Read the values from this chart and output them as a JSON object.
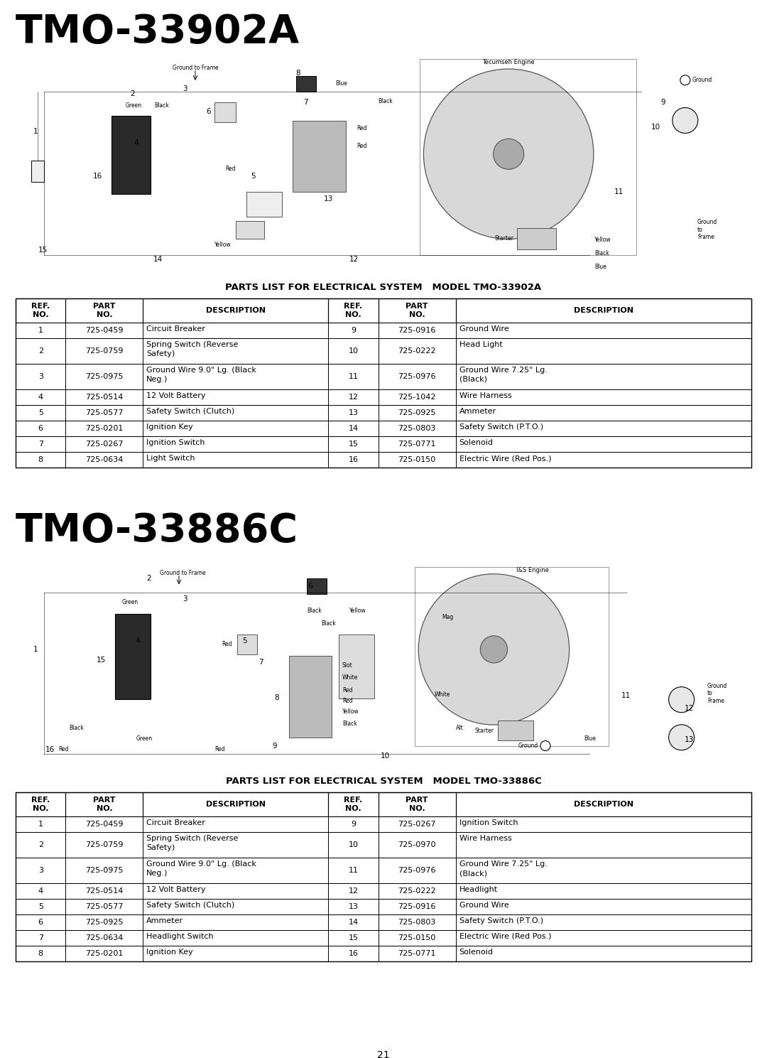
{
  "title1": "TMO-33902A",
  "title2": "TMO-33886C",
  "page_bg": "#ffffff",
  "table1_title": "PARTS LIST FOR ELECTRICAL SYSTEM   MODEL TMO-33902A",
  "table2_title": "PARTS LIST FOR ELECTRICAL SYSTEM   MODEL TMO-33886C",
  "table1_left": [
    [
      "1",
      "725-0459",
      "Circuit Breaker"
    ],
    [
      "2",
      "725-0759",
      "Spring Switch (Reverse\nSafety)"
    ],
    [
      "3",
      "725-0975",
      "Ground Wire 9.0\" Lg. (Black\nNeg.)"
    ],
    [
      "4",
      "725-0514",
      "12 Volt Battery"
    ],
    [
      "5",
      "725-0577",
      "Safety Switch (Clutch)"
    ],
    [
      "6",
      "725-0201",
      "Ignition Key"
    ],
    [
      "7",
      "725-0267",
      "Ignition Switch"
    ],
    [
      "8",
      "725-0634",
      "Light Switch"
    ]
  ],
  "table1_right": [
    [
      "9",
      "725-0916",
      "Ground Wire"
    ],
    [
      "10",
      "725-0222",
      "Head Light"
    ],
    [
      "11",
      "725-0976",
      "Ground Wire 7.25\" Lg.\n(Black)"
    ],
    [
      "12",
      "725-1042",
      "Wire Harness"
    ],
    [
      "13",
      "725-0925",
      "Ammeter"
    ],
    [
      "14",
      "725-0803",
      "Safety Switch (P.T.O.)"
    ],
    [
      "15",
      "725-0771",
      "Solenoid"
    ],
    [
      "16",
      "725-0150",
      "Electric Wire (Red Pos.)"
    ]
  ],
  "table2_left": [
    [
      "1",
      "725-0459",
      "Circuit Breaker"
    ],
    [
      "2",
      "725-0759",
      "Spring Switch (Reverse\nSafety)"
    ],
    [
      "3",
      "725-0975",
      "Ground Wire 9.0\" Lg. (Black\nNeg.)"
    ],
    [
      "4",
      "725-0514",
      "12 Volt Battery"
    ],
    [
      "5",
      "725-0577",
      "Safety Switch (Clutch)"
    ],
    [
      "6",
      "725-0925",
      "Ammeter"
    ],
    [
      "7",
      "725-0634",
      "Headlight Switch"
    ],
    [
      "8",
      "725-0201",
      "Ignition Key"
    ]
  ],
  "table2_right": [
    [
      "9",
      "725-0267",
      "Ignition Switch"
    ],
    [
      "10",
      "725-0970",
      "Wire Harness"
    ],
    [
      "11",
      "725-0976",
      "Ground Wire 7.25\" Lg.\n(Black)"
    ],
    [
      "12",
      "725-0222",
      "Headlight"
    ],
    [
      "13",
      "725-0916",
      "Ground Wire"
    ],
    [
      "14",
      "725-0803",
      "Safety Switch (P.T.O.)"
    ],
    [
      "15",
      "725-0150",
      "Electric Wire (Red Pos.)"
    ],
    [
      "16",
      "725-0771",
      "Solenoid"
    ]
  ],
  "page_number": "21"
}
